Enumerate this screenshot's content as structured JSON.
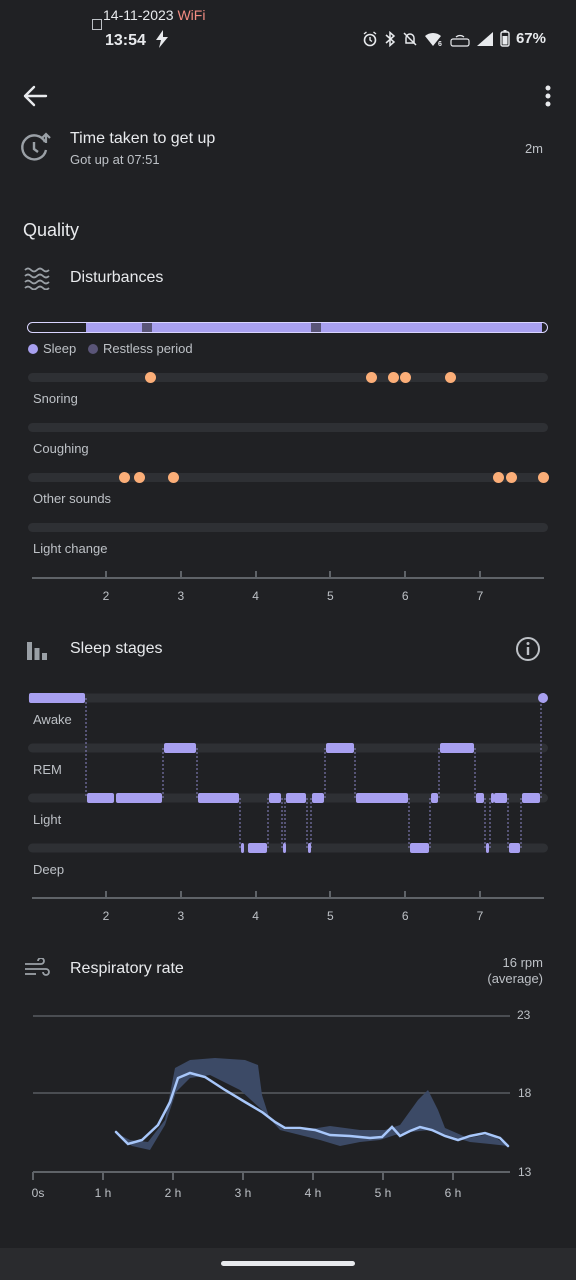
{
  "status_bar": {
    "date": "14-11-2023",
    "network": "WiFi",
    "time": "13:54",
    "battery": "67%"
  },
  "header": {
    "back_icon": "arrow-left-icon",
    "menu_icon": "more-vert-icon"
  },
  "get_up": {
    "icon": "alarm-clock-up-icon",
    "title": "Time taken to get up",
    "subtitle": "Got up at 07:51",
    "value": "2m"
  },
  "quality": {
    "heading": "Quality"
  },
  "disturbances": {
    "icon": "waves-icon",
    "title": "Disturbances",
    "legend": {
      "sleep": "Sleep",
      "restless": "Restless period"
    },
    "tracks": [
      {
        "label": "Snoring",
        "events_hours": [
          2.6,
          5.55,
          5.85,
          6.0,
          6.6
        ]
      },
      {
        "label": "Coughing",
        "events_hours": []
      },
      {
        "label": "Other sounds",
        "events_hours": [
          2.25,
          2.45,
          2.9,
          7.25,
          7.42,
          7.85
        ]
      },
      {
        "label": "Light change",
        "events_hours": []
      }
    ],
    "axis_ticks": [
      "2",
      "3",
      "4",
      "5",
      "6",
      "7"
    ],
    "colors": {
      "sleep": "#a8a0f0",
      "restless": "#5a5578",
      "event": "#fbae78"
    }
  },
  "sleep_stages": {
    "icon": "bar-chart-icon",
    "info_icon": "info-icon",
    "title": "Sleep stages",
    "stages": [
      "Awake",
      "REM",
      "Light",
      "Deep"
    ],
    "axis_ticks": [
      "2",
      "3",
      "4",
      "5",
      "6",
      "7"
    ],
    "color": "#a8a0f0"
  },
  "respiratory": {
    "icon": "wind-icon",
    "title": "Respiratory rate",
    "average": "16 rpm",
    "average_note": "(average)",
    "y_labels": [
      "23",
      "18",
      "13"
    ],
    "x_labels": [
      "0s",
      "1 h",
      "2 h",
      "3 h",
      "4 h",
      "5 h",
      "6 h"
    ],
    "line_color": "#a8c7fa",
    "band_color": "#3c4a66"
  }
}
